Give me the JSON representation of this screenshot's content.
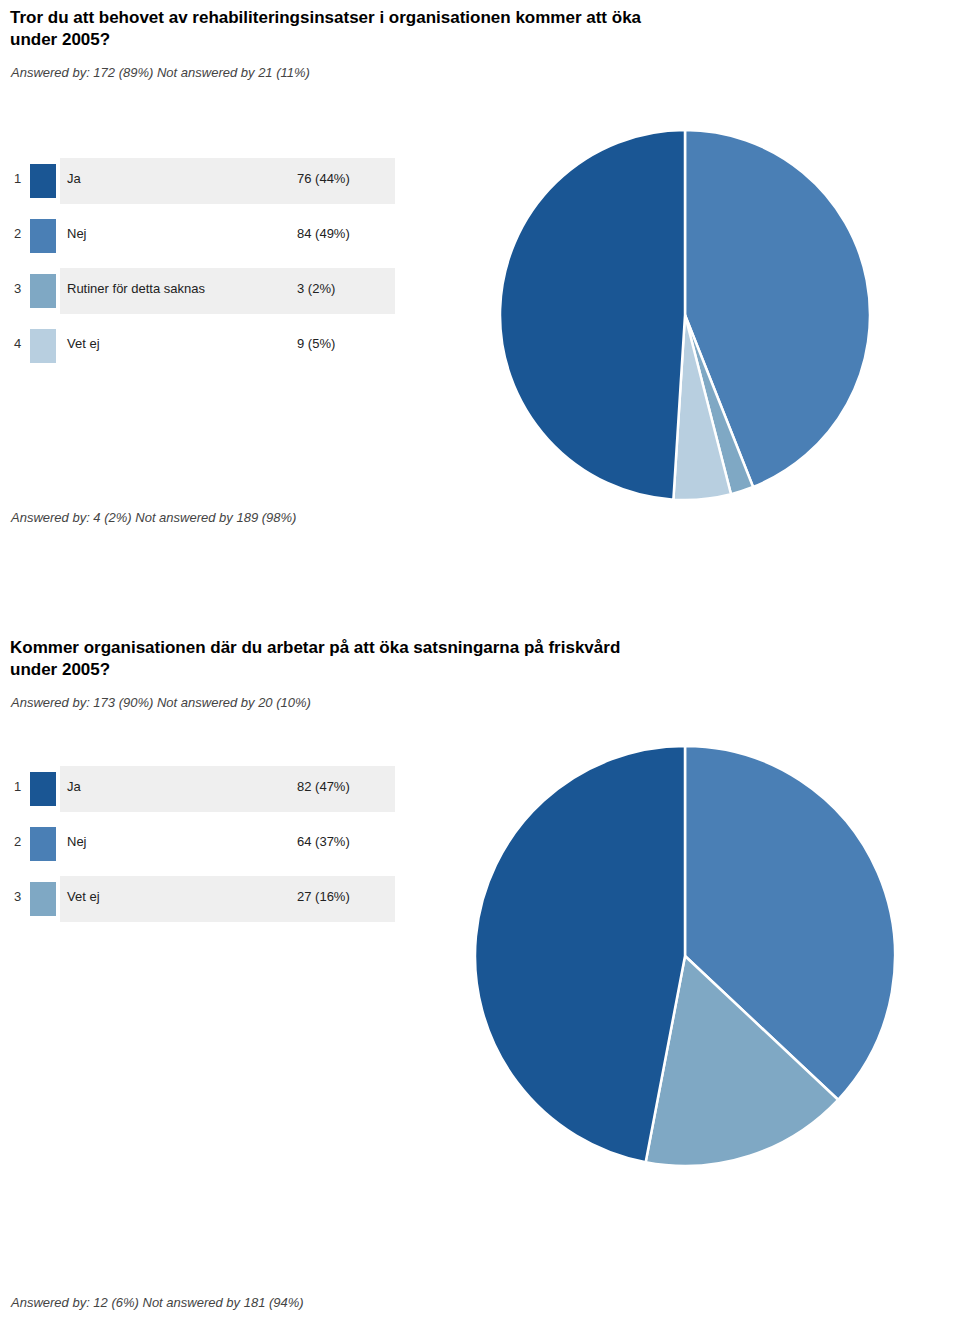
{
  "chart_data": [
    {
      "type": "pie",
      "title": "Tror du att behovet av rehabiliteringsinsatser i organisationen kommer att öka\nunder 2005?",
      "subtitle": "Answered by: 172 (89%) Not answered by 21 (11%)",
      "annotations": [
        "Answered by: 4 (2%) Not answered by 189 (98%)"
      ],
      "values": [
        44,
        2,
        5,
        49
      ],
      "colors": [
        "#4a7fb5",
        "#7fa8c4",
        "#b8cfe0",
        "#1a5694"
      ],
      "table": {
        "numbers": [
          1,
          2,
          3,
          4
        ],
        "categories": [
          "Ja",
          "Nej",
          "Rutiner för detta saknas",
          "Vet ej"
        ],
        "values": [
          76,
          84,
          3,
          9
        ],
        "percents": [
          44,
          49,
          2,
          5
        ],
        "value_labels": [
          "76 (44%)",
          "84 (49%)",
          "3 (2%)",
          "9 (5%)"
        ],
        "colors": [
          "#1a5694",
          "#4a7fb5",
          "#7fa8c4",
          "#b8cfe0"
        ],
        "row_colors": [
          "#efefef",
          "#ffffff"
        ]
      }
    },
    {
      "type": "pie",
      "title": "Kommer organisationen där du arbetar på att öka satsningarna på friskvård\nunder 2005?",
      "subtitle": "Answered by: 173 (90%) Not answered by 20 (10%)",
      "annotations": [
        "Answered by: 12 (6%) Not answered by 181 (94%)"
      ],
      "values": [
        37,
        16,
        47
      ],
      "colors": [
        "#4a7fb5",
        "#7fa8c4",
        "#1a5694"
      ],
      "table": {
        "numbers": [
          1,
          2,
          3
        ],
        "categories": [
          "Ja",
          "Nej",
          "Vet ej"
        ],
        "values": [
          82,
          64,
          27
        ],
        "percents": [
          47,
          37,
          16
        ],
        "value_labels": [
          "82 (47%)",
          "64 (37%)",
          "27 (16%)"
        ],
        "colors": [
          "#1a5694",
          "#4a7fb5",
          "#7fa8c4"
        ],
        "row_colors": [
          "#efefef",
          "#ffffff"
        ]
      }
    }
  ]
}
